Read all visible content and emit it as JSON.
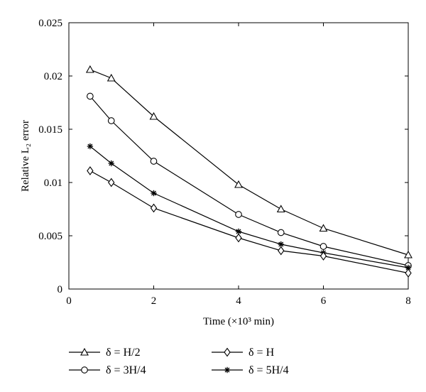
{
  "chart_data": {
    "type": "line",
    "xlabel": "Time (×10³ min)",
    "ylabel": "Relative L₂ error",
    "xlim": [
      0,
      8
    ],
    "ylim": [
      0,
      0.025
    ],
    "x_ticks": [
      "0",
      "2",
      "4",
      "6",
      "8"
    ],
    "y_ticks": [
      "0",
      "0.005",
      "0.01",
      "0.015",
      "0.02",
      "0.025"
    ],
    "grid": false,
    "legend_position": "bottom",
    "x": [
      0.5,
      1,
      2,
      4,
      5,
      6,
      8
    ],
    "series": [
      {
        "name": "δ = H/2",
        "marker": "triangle",
        "values": [
          0.0206,
          0.0198,
          0.0162,
          0.0098,
          0.0075,
          0.0057,
          0.0032
        ]
      },
      {
        "name": "δ = 3H/4",
        "marker": "circle",
        "values": [
          0.0181,
          0.0158,
          0.012,
          0.007,
          0.0053,
          0.004,
          0.0022
        ]
      },
      {
        "name": "δ = 5H/4",
        "marker": "star",
        "values": [
          0.0134,
          0.0118,
          0.009,
          0.0054,
          0.0042,
          0.0034,
          0.002
        ]
      },
      {
        "name": "δ = H",
        "marker": "diamond",
        "values": [
          0.0111,
          0.01,
          0.0076,
          0.0048,
          0.0036,
          0.0031,
          0.0015
        ]
      }
    ],
    "legend_order": [
      0,
      3,
      1,
      2
    ],
    "line_color": "#000000"
  }
}
